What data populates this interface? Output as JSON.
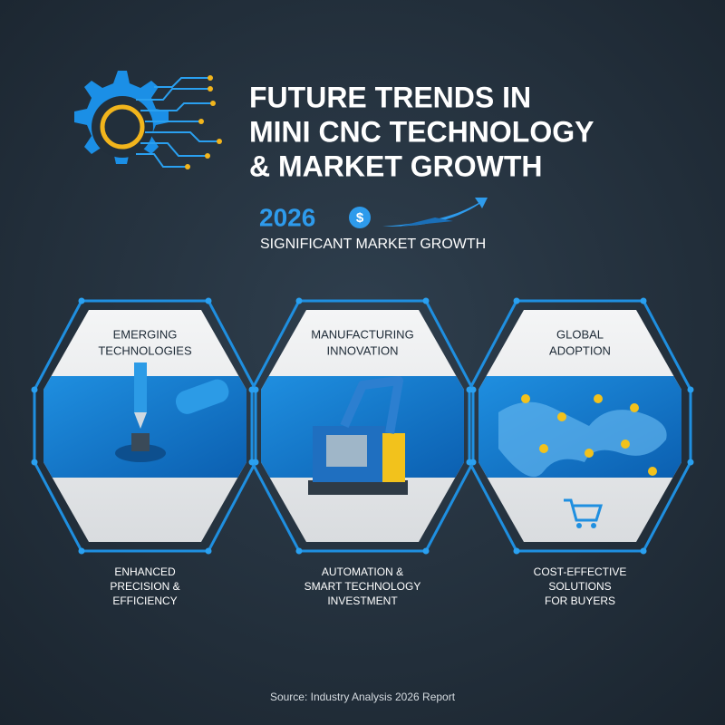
{
  "header": {
    "title_lines": [
      "FUTURE TRENDS IN",
      "MINI CNC TECHNOLOGY",
      "& MARKET GROWTH"
    ],
    "year": "2026",
    "currency_icon": "$",
    "subtitle": "SIGNIFICANT MARKET GROWTH"
  },
  "panels": [
    {
      "title_lines": [
        "EMERGING",
        "TECHNOLOGIES"
      ],
      "caption_lines": [
        "ENHANCED",
        "PRECISION &",
        "EFFICIENCY"
      ]
    },
    {
      "title_lines": [
        "MANUFACTURING",
        "INNOVATION"
      ],
      "caption_lines": [
        "AUTOMATION &",
        "SMART TECHNOLOGY",
        "INVESTMENT"
      ]
    },
    {
      "title_lines": [
        "GLOBAL",
        "ADOPTION"
      ],
      "caption_lines": [
        "COST-EFFECTIVE",
        "SOLUTIONS",
        "FOR BUYERS"
      ]
    }
  ],
  "footer": {
    "source": "Source: Industry Analysis 2026 Report"
  }
}
